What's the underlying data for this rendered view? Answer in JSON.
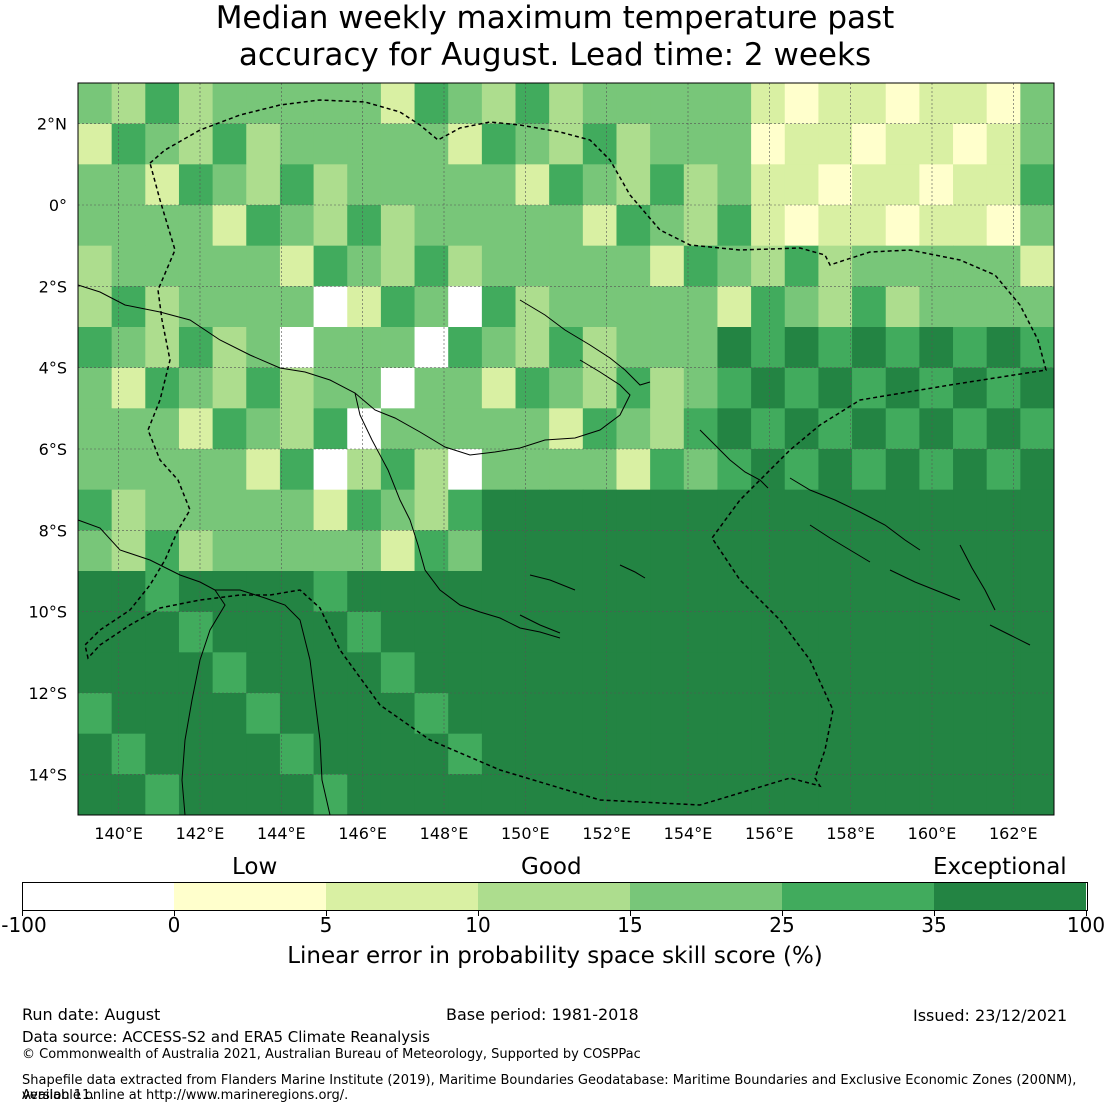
{
  "title_line1": "Median weekly maximum temperature past",
  "title_line2": "accuracy for August. Lead time: 2 weeks",
  "map": {
    "lon_range": [
      139,
      163
    ],
    "lat_range": [
      -15,
      3
    ],
    "lon_ticks": [
      "140°E",
      "142°E",
      "144°E",
      "146°E",
      "148°E",
      "150°E",
      "152°E",
      "154°E",
      "156°E",
      "158°E",
      "160°E",
      "162°E"
    ],
    "lat_ticks": [
      "2°N",
      "0°",
      "2°S",
      "4°S",
      "6°S",
      "8°S",
      "10°S",
      "12°S",
      "14°S"
    ]
  },
  "colorbar": {
    "headings": [
      "Low",
      "Good",
      "Exceptional"
    ],
    "ticks": [
      "-100",
      "0",
      "5",
      "10",
      "15",
      "25",
      "35",
      "100"
    ],
    "colors": [
      "#ffffff",
      "#ffffcc",
      "#d9f0a3",
      "#addd8e",
      "#78c679",
      "#41ab5d",
      "#238443"
    ],
    "label": "Linear error in probability space skill score (%)"
  },
  "footer": {
    "run_date": "Run date: August",
    "base_period": "Base period: 1981-2018",
    "issued": "Issued: 23/12/2021",
    "data_source": "Data source: ACCESS-S2 and ERA5 Climate Reanalysis",
    "copyright": "© Commonwealth of Australia 2021, Australian Bureau of Meteorology, Supported by COSPPac",
    "shapefile_1": "Shapefile data extracted from Flanders Marine Institute (2019), Maritime Boundaries Geodatabase: Maritime Boundaries and Exclusive Economic Zones (200NM), version 11.",
    "shapefile_2": "Available online at http://www.marineregions.org/."
  }
}
